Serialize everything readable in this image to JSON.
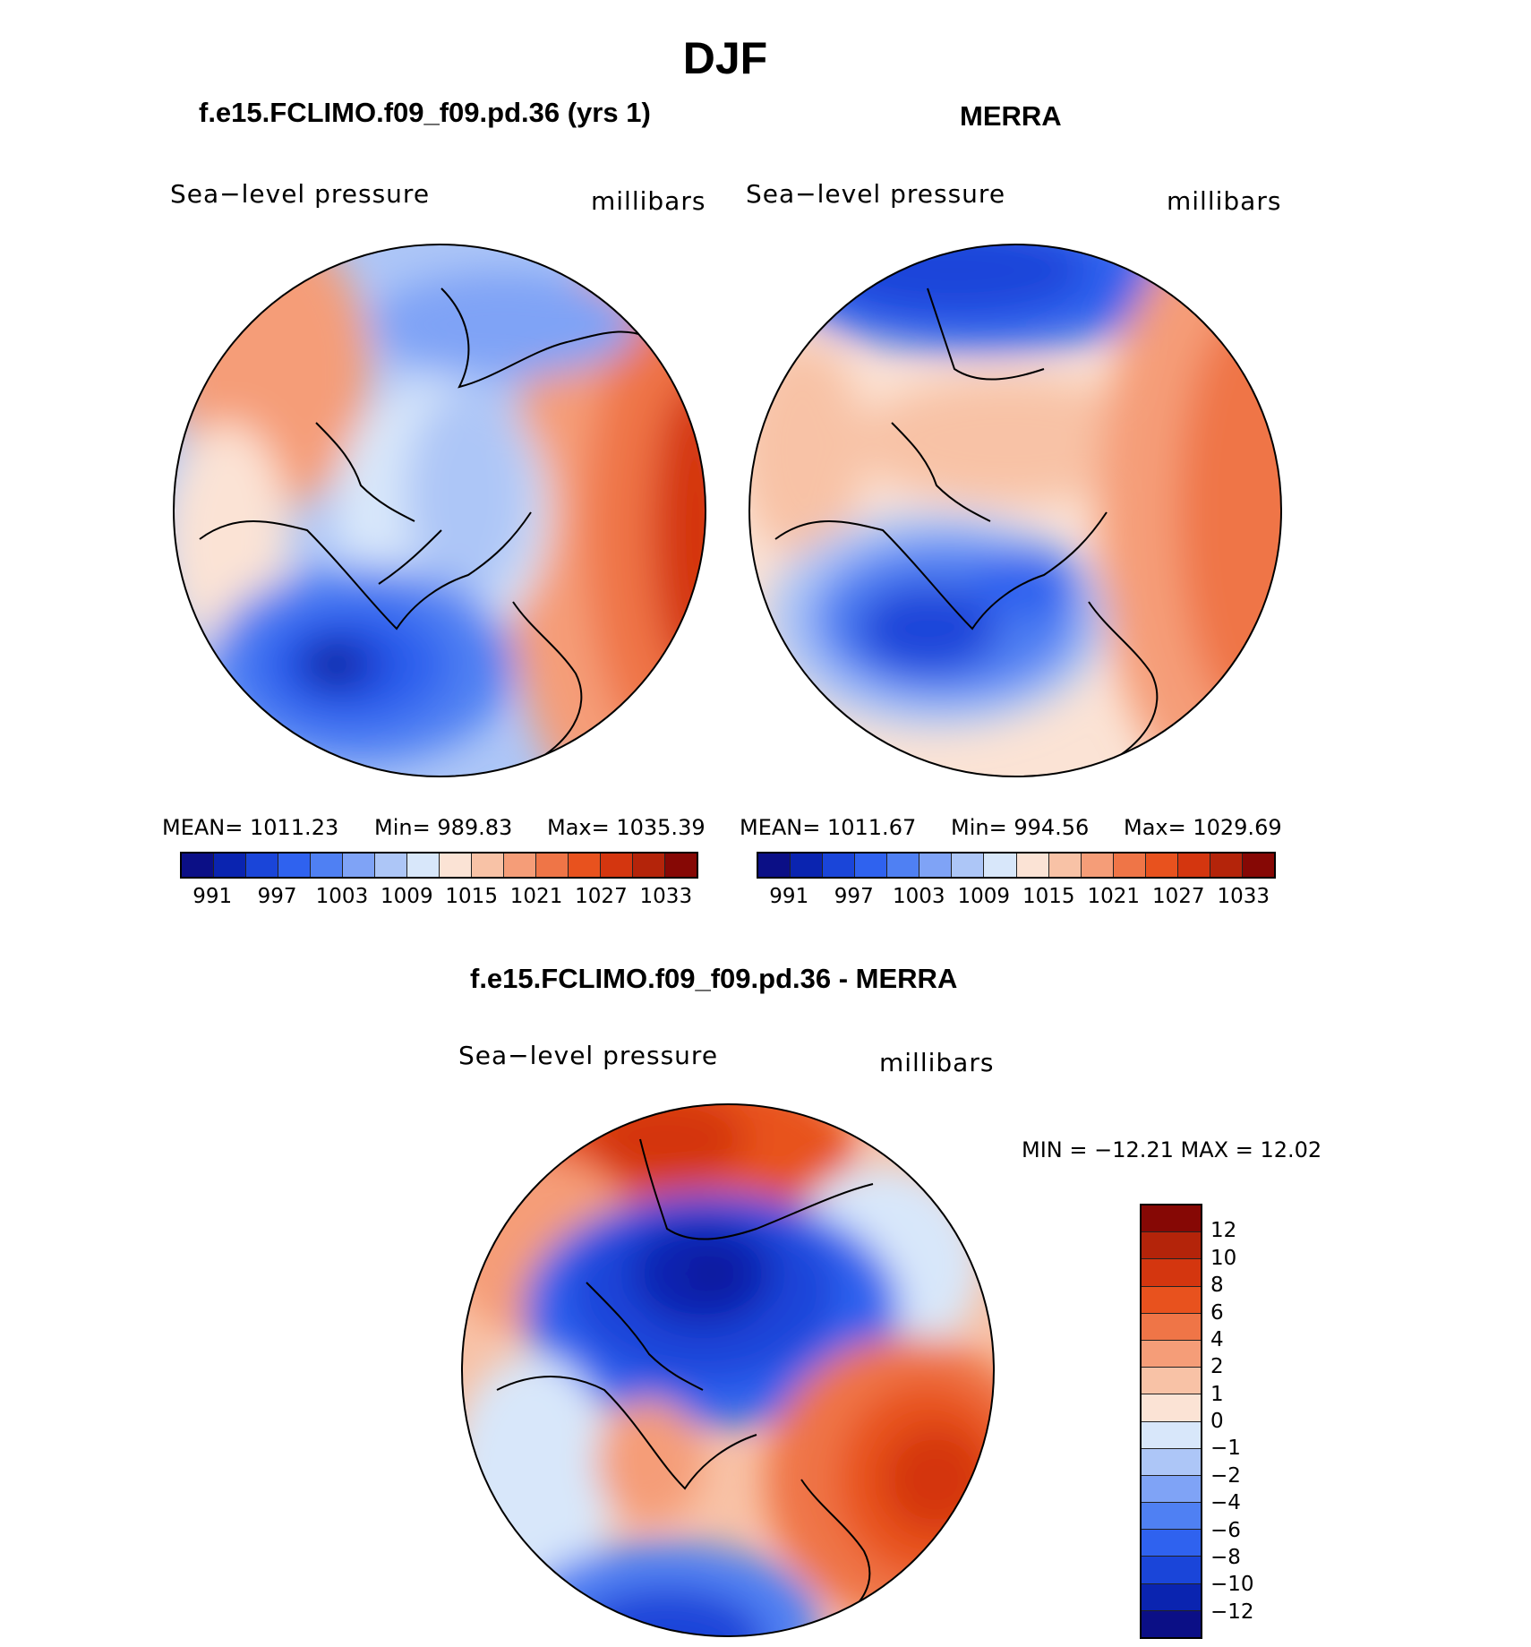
{
  "figure": {
    "season": "DJF"
  },
  "panel_model": {
    "title": "f.e15.FCLIMO.f09_f09.pd.36 (yrs 1)",
    "variable": "Sea−level pressure",
    "units": "millibars",
    "stats": {
      "mean": "MEAN=  1011.23",
      "min": "Min=  989.83",
      "max": "Max=  1035.39"
    }
  },
  "panel_obs": {
    "title": "MERRA",
    "variable": "Sea−level pressure",
    "units": "millibars",
    "stats": {
      "mean": "MEAN=  1011.67",
      "min": "Min=  994.56",
      "max": "Max=  1029.69"
    }
  },
  "panel_diff": {
    "title": "f.e15.FCLIMO.f09_f09.pd.36 - MERRA",
    "variable": "Sea−level pressure",
    "units": "millibars",
    "stats": "MIN =  −12.21  MAX =    12.02"
  },
  "abs_colorbar": {
    "colors": [
      "#0b0f86",
      "#0a24b0",
      "#1a45d9",
      "#2f62ef",
      "#4f80f3",
      "#7fa3f6",
      "#adc6f7",
      "#d8e7fa",
      "#fbe3d5",
      "#f8c2a6",
      "#f59d78",
      "#ef7547",
      "#e8521e",
      "#d4360f",
      "#b4240a",
      "#860805"
    ],
    "tick_labels": [
      "991",
      "997",
      "1003",
      "1009",
      "1015",
      "1021",
      "1027",
      "1033"
    ]
  },
  "diff_colorbar": {
    "colors": [
      "#860805",
      "#b4240a",
      "#d4360f",
      "#e8521e",
      "#ef7547",
      "#f59d78",
      "#f8c2a6",
      "#fbe3d5",
      "#d8e7fa",
      "#adc6f7",
      "#7fa3f6",
      "#4f80f3",
      "#2f62ef",
      "#1a45d9",
      "#0a24b0",
      "#0b0f86"
    ],
    "tick_labels": [
      "12",
      "10",
      "8",
      "6",
      "4",
      "2",
      "1",
      "0",
      "−1",
      "−2",
      "−4",
      "−6",
      "−8",
      "−10",
      "−12"
    ]
  }
}
